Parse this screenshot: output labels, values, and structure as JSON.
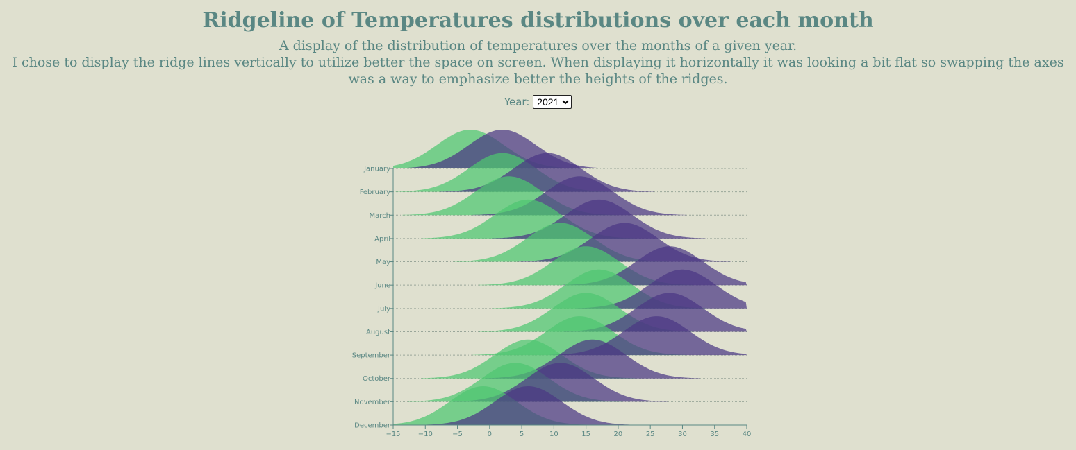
{
  "header": {
    "title": "Ridgeline of Temperatures distributions over each month",
    "line1": "A display of the distribution of temperatures over the months of a given year.",
    "line2": "I chose to display the ridge lines vertically to utilize better the space on screen. When displaying it horizontally it was looking a bit flat so swapping the axes was a way to emphasize better the heights of the ridges."
  },
  "controls": {
    "year_label": "Year:",
    "year_value": "2021"
  },
  "colors": {
    "min": "#4ec670",
    "max": "#4b3784",
    "axis": "#5a8783",
    "background": "#dfe0cf"
  },
  "chart_data": {
    "type": "ridgeline",
    "categories": [
      "January",
      "February",
      "March",
      "April",
      "May",
      "June",
      "July",
      "August",
      "September",
      "October",
      "November",
      "December"
    ],
    "xlim": [
      -15,
      40
    ],
    "xticks": [
      -15,
      -10,
      -5,
      0,
      5,
      10,
      15,
      20,
      25,
      30,
      35,
      40
    ],
    "series": [
      {
        "peaks": [
          -3,
          2,
          3,
          6,
          11,
          15,
          17,
          15,
          14,
          6,
          4,
          -1
        ]
      },
      {
        "peaks": [
          2,
          9,
          14,
          17,
          21,
          28,
          30,
          28,
          26,
          16,
          11,
          6
        ]
      }
    ]
  }
}
